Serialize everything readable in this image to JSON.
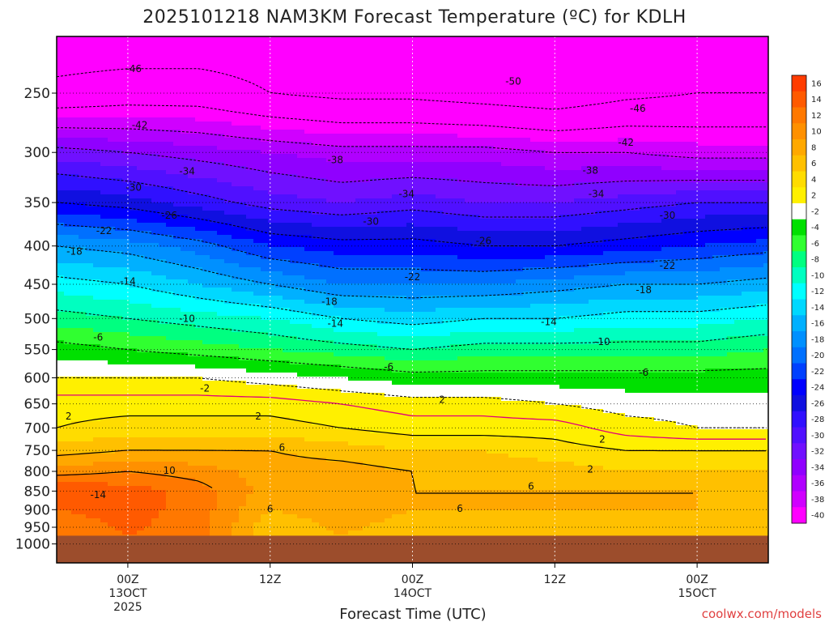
{
  "chart_data": {
    "type": "heatmap",
    "title": "2025101218 NAM3KM Forecast Temperature (ºC) for KDLH",
    "xlabel": "Forecast Time (UTC)",
    "ylabel": "",
    "credit": "coolwx.com/models",
    "y_axis": {
      "scale": "log-pressure",
      "unit": "hPa",
      "range": [
        1060,
        210
      ],
      "ticks": [
        250,
        300,
        350,
        400,
        450,
        500,
        550,
        600,
        650,
        700,
        750,
        800,
        850,
        900,
        950,
        1000
      ]
    },
    "x_axis": {
      "unit": "forecast hour",
      "range": [
        -6,
        54
      ],
      "ticks": [
        {
          "hour": 0,
          "lines": [
            "00Z",
            "13OCT",
            "2025"
          ]
        },
        {
          "hour": 12,
          "lines": [
            "12Z"
          ]
        },
        {
          "hour": 24,
          "lines": [
            "00Z",
            "14OCT"
          ]
        },
        {
          "hour": 36,
          "lines": [
            "12Z"
          ]
        },
        {
          "hour": 48,
          "lines": [
            "00Z",
            "15OCT"
          ]
        }
      ]
    },
    "grid": true,
    "terrain": {
      "surface_pressure_hPa": 975,
      "color": "#9c4d2c"
    },
    "colorbar": {
      "placement": "right",
      "levels": [
        16,
        14,
        12,
        10,
        8,
        6,
        4,
        2,
        -2,
        -4,
        -6,
        -8,
        -10,
        -12,
        -14,
        -16,
        -18,
        -20,
        -22,
        -24,
        -26,
        -28,
        -30,
        -32,
        -34,
        -36,
        -38,
        -40
      ],
      "colors": [
        "#ff3c00",
        "#ff5a00",
        "#ff7800",
        "#ff9000",
        "#ffa800",
        "#ffc000",
        "#ffdc00",
        "#fff000",
        "#ffffff",
        "#00e000",
        "#30ff30",
        "#00ff80",
        "#00ffc0",
        "#00ffff",
        "#00d8ff",
        "#00b0ff",
        "#0090ff",
        "#0070ff",
        "#0040ff",
        "#0000ff",
        "#1010e0",
        "#3010ff",
        "#5010ff",
        "#7010ff",
        "#9000ff",
        "#b000ff",
        "#d000ff",
        "#ff00ff"
      ]
    },
    "profiles": [
      {
        "hour": -6,
        "temps": [
          [
            975,
            10
          ],
          [
            900,
            12
          ],
          [
            850,
            14
          ],
          [
            800,
            9
          ],
          [
            750,
            5
          ],
          [
            700,
            2
          ],
          [
            650,
            1
          ],
          [
            600,
            -2
          ],
          [
            550,
            -5
          ],
          [
            500,
            -9
          ],
          [
            450,
            -13
          ],
          [
            400,
            -18
          ],
          [
            350,
            -26
          ],
          [
            300,
            -33
          ],
          [
            250,
            -45
          ],
          [
            215,
            -48
          ]
        ]
      },
      {
        "hour": 0,
        "temps": [
          [
            975,
            12
          ],
          [
            900,
            13
          ],
          [
            850,
            13
          ],
          [
            800,
            10
          ],
          [
            750,
            6
          ],
          [
            700,
            3
          ],
          [
            650,
            1
          ],
          [
            600,
            -2
          ],
          [
            550,
            -6
          ],
          [
            500,
            -10
          ],
          [
            450,
            -14
          ],
          [
            400,
            -19
          ],
          [
            350,
            -27
          ],
          [
            300,
            -34
          ],
          [
            250,
            -44
          ],
          [
            215,
            -48
          ]
        ]
      },
      {
        "hour": 6,
        "temps": [
          [
            975,
            11
          ],
          [
            900,
            11
          ],
          [
            850,
            11
          ],
          [
            800,
            9
          ],
          [
            750,
            6
          ],
          [
            700,
            3
          ],
          [
            650,
            1
          ],
          [
            600,
            -2
          ],
          [
            550,
            -7
          ],
          [
            500,
            -11
          ],
          [
            450,
            -16
          ],
          [
            400,
            -21
          ],
          [
            350,
            -29
          ],
          [
            300,
            -35
          ],
          [
            250,
            -44
          ],
          [
            215,
            -48
          ]
        ]
      },
      {
        "hour": 12,
        "temps": [
          [
            975,
            4
          ],
          [
            900,
            6
          ],
          [
            850,
            7
          ],
          [
            800,
            7
          ],
          [
            750,
            6
          ],
          [
            700,
            3
          ],
          [
            650,
            1
          ],
          [
            600,
            -3
          ],
          [
            550,
            -8
          ],
          [
            500,
            -12
          ],
          [
            450,
            -18
          ],
          [
            400,
            -24
          ],
          [
            350,
            -31
          ],
          [
            300,
            -36
          ],
          [
            250,
            -46
          ],
          [
            215,
            -48
          ]
        ]
      },
      {
        "hour": 18,
        "temps": [
          [
            975,
            6
          ],
          [
            900,
            7
          ],
          [
            850,
            7
          ],
          [
            800,
            7
          ],
          [
            750,
            5
          ],
          [
            700,
            2
          ],
          [
            650,
            0
          ],
          [
            600,
            -4
          ],
          [
            550,
            -9
          ],
          [
            500,
            -14
          ],
          [
            450,
            -20
          ],
          [
            400,
            -25
          ],
          [
            350,
            -32
          ],
          [
            300,
            -37
          ],
          [
            250,
            -47
          ],
          [
            215,
            -49
          ]
        ]
      },
      {
        "hour": 24,
        "temps": [
          [
            975,
            5
          ],
          [
            900,
            6
          ],
          [
            850,
            6
          ],
          [
            800,
            6
          ],
          [
            750,
            4
          ],
          [
            700,
            1
          ],
          [
            650,
            -1
          ],
          [
            600,
            -5
          ],
          [
            550,
            -10
          ],
          [
            500,
            -15
          ],
          [
            450,
            -20
          ],
          [
            400,
            -25
          ],
          [
            350,
            -31
          ],
          [
            300,
            -37
          ],
          [
            250,
            -47
          ],
          [
            215,
            -49
          ]
        ]
      },
      {
        "hour": 30,
        "temps": [
          [
            975,
            5
          ],
          [
            900,
            6
          ],
          [
            850,
            6
          ],
          [
            800,
            5
          ],
          [
            750,
            4
          ],
          [
            700,
            1
          ],
          [
            650,
            -1
          ],
          [
            600,
            -5
          ],
          [
            550,
            -9
          ],
          [
            500,
            -14
          ],
          [
            450,
            -20
          ],
          [
            400,
            -26
          ],
          [
            350,
            -32
          ],
          [
            300,
            -37
          ],
          [
            250,
            -48
          ],
          [
            215,
            -49
          ]
        ]
      },
      {
        "hour": 36,
        "temps": [
          [
            975,
            5
          ],
          [
            900,
            6
          ],
          [
            850,
            6
          ],
          [
            800,
            5
          ],
          [
            750,
            3
          ],
          [
            700,
            1
          ],
          [
            650,
            -2
          ],
          [
            600,
            -5
          ],
          [
            550,
            -9
          ],
          [
            500,
            -14
          ],
          [
            450,
            -19
          ],
          [
            400,
            -26
          ],
          [
            350,
            -32
          ],
          [
            300,
            -38
          ],
          [
            250,
            -49
          ],
          [
            215,
            -49
          ]
        ]
      },
      {
        "hour": 42,
        "temps": [
          [
            975,
            5
          ],
          [
            900,
            6
          ],
          [
            850,
            6
          ],
          [
            800,
            4
          ],
          [
            750,
            2
          ],
          [
            700,
            -1
          ],
          [
            650,
            -3
          ],
          [
            600,
            -5
          ],
          [
            550,
            -9
          ],
          [
            500,
            -13
          ],
          [
            450,
            -18
          ],
          [
            400,
            -25
          ],
          [
            350,
            -31
          ],
          [
            300,
            -38
          ],
          [
            250,
            -47
          ],
          [
            215,
            -49
          ]
        ]
      },
      {
        "hour": 48,
        "temps": [
          [
            975,
            5
          ],
          [
            900,
            6
          ],
          [
            850,
            6
          ],
          [
            800,
            4
          ],
          [
            750,
            2
          ],
          [
            700,
            -2
          ],
          [
            650,
            -3
          ],
          [
            600,
            -5
          ],
          [
            550,
            -9
          ],
          [
            500,
            -13
          ],
          [
            450,
            -18
          ],
          [
            400,
            -24
          ],
          [
            350,
            -30
          ],
          [
            300,
            -39
          ],
          [
            250,
            -46
          ],
          [
            215,
            -49
          ]
        ]
      },
      {
        "hour": 54,
        "temps": [
          [
            975,
            5
          ],
          [
            900,
            6
          ],
          [
            850,
            5
          ],
          [
            800,
            4
          ],
          [
            750,
            2
          ],
          [
            700,
            -2
          ],
          [
            650,
            -3
          ],
          [
            600,
            -5
          ],
          [
            550,
            -8
          ],
          [
            500,
            -12
          ],
          [
            450,
            -17
          ],
          [
            400,
            -23
          ],
          [
            350,
            -30
          ],
          [
            300,
            -39
          ],
          [
            250,
            -46
          ],
          [
            215,
            -49
          ]
        ]
      }
    ],
    "contour_labels": [
      {
        "text": "-46",
        "hour": 0.5,
        "p": 232
      },
      {
        "text": "-50",
        "hour": 32.5,
        "p": 241
      },
      {
        "text": "-46",
        "hour": 43,
        "p": 262
      },
      {
        "text": "-42",
        "hour": 1,
        "p": 276
      },
      {
        "text": "-42",
        "hour": 42,
        "p": 291
      },
      {
        "text": "-38",
        "hour": 17.5,
        "p": 307
      },
      {
        "text": "-38",
        "hour": 39,
        "p": 317
      },
      {
        "text": "-34",
        "hour": 5,
        "p": 318
      },
      {
        "text": "-30",
        "hour": 0.5,
        "p": 334
      },
      {
        "text": "-34",
        "hour": 23.5,
        "p": 341
      },
      {
        "text": "-34",
        "hour": 39.5,
        "p": 341
      },
      {
        "text": "-26",
        "hour": 3.5,
        "p": 364
      },
      {
        "text": "-30",
        "hour": 20.5,
        "p": 371
      },
      {
        "text": "-30",
        "hour": 45.5,
        "p": 364
      },
      {
        "text": "-22",
        "hour": -2,
        "p": 382
      },
      {
        "text": "-26",
        "hour": 30,
        "p": 394
      },
      {
        "text": "-18",
        "hour": -4.5,
        "p": 407
      },
      {
        "text": "-22",
        "hour": 45.5,
        "p": 425
      },
      {
        "text": "-22",
        "hour": 24,
        "p": 440
      },
      {
        "text": "-14",
        "hour": 0,
        "p": 446
      },
      {
        "text": "-18",
        "hour": 43.5,
        "p": 458
      },
      {
        "text": "-18",
        "hour": 17,
        "p": 475
      },
      {
        "text": "-10",
        "hour": 5,
        "p": 500
      },
      {
        "text": "-14",
        "hour": 17.5,
        "p": 508
      },
      {
        "text": "-14",
        "hour": 35.5,
        "p": 505
      },
      {
        "text": "-6",
        "hour": -2.5,
        "p": 530
      },
      {
        "text": "-10",
        "hour": 40,
        "p": 537
      },
      {
        "text": "-6",
        "hour": 22,
        "p": 580
      },
      {
        "text": "-6",
        "hour": 43.5,
        "p": 590
      },
      {
        "text": "-2",
        "hour": 6.5,
        "p": 620
      },
      {
        "text": "2",
        "hour": 26.5,
        "p": 642
      },
      {
        "text": "2",
        "hour": -5,
        "p": 675
      },
      {
        "text": "2",
        "hour": 11,
        "p": 675
      },
      {
        "text": "2",
        "hour": 40,
        "p": 725
      },
      {
        "text": "6",
        "hour": 13,
        "p": 743
      },
      {
        "text": "2",
        "hour": 39,
        "p": 795
      },
      {
        "text": "10",
        "hour": 3.5,
        "p": 798
      },
      {
        "text": "6",
        "hour": 34,
        "p": 838
      },
      {
        "text": "-14",
        "hour": -2.5,
        "p": 860
      },
      {
        "text": "6",
        "hour": 12,
        "p": 898
      },
      {
        "text": "6",
        "hour": 28,
        "p": 897
      }
    ]
  }
}
